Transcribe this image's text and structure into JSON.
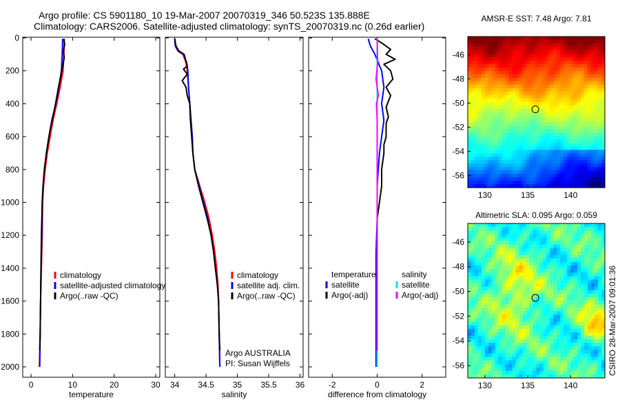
{
  "header": {
    "title_line1": "Argo profile: CS 5901180_10 19-Mar-2007 20070319_346 50.523S 135.888E",
    "title_line2": "Climatology: CARS2006. Satellite-adjusted climatology: synTS_20070319.nc (0.26d earlier)"
  },
  "side_text": "CSIRO 28-Mar-2007 09:01:36",
  "colors": {
    "climatology": "#ff0000",
    "satellite": "#0000ff",
    "argo": "#000000",
    "sat_salinity": "#00e5e5",
    "argo_salinity": "#ff00ff"
  },
  "chart_data": [
    {
      "type": "line",
      "name": "temperature-profile",
      "xlabel": "temperature",
      "xlim": [
        -2,
        31
      ],
      "ylim": [
        0,
        2050
      ],
      "x_ticks": [
        0,
        10,
        20,
        30
      ],
      "y_ticks": [
        0,
        200,
        400,
        600,
        800,
        1000,
        1200,
        1400,
        1600,
        1800,
        2000
      ],
      "legend": [
        "climatology",
        "satellite-adjusted climatology",
        "Argo(..raw -QC)"
      ],
      "series": [
        {
          "name": "climatology",
          "color_key": "climatology",
          "points": [
            [
              8.0,
              5
            ],
            [
              7.9,
              100
            ],
            [
              7.7,
              200
            ],
            [
              7.0,
              300
            ],
            [
              6.2,
              400
            ],
            [
              5.3,
              500
            ],
            [
              4.6,
              600
            ],
            [
              3.9,
              700
            ],
            [
              3.4,
              800
            ],
            [
              3.0,
              900
            ],
            [
              2.8,
              1000
            ],
            [
              2.7,
              1200
            ],
            [
              2.5,
              1400
            ],
            [
              2.3,
              1600
            ],
            [
              2.2,
              1800
            ],
            [
              2.0,
              2000
            ]
          ]
        },
        {
          "name": "satellite",
          "color_key": "satellite",
          "points": [
            [
              7.6,
              5
            ],
            [
              7.5,
              100
            ],
            [
              7.3,
              200
            ],
            [
              6.7,
              300
            ],
            [
              6.0,
              400
            ],
            [
              5.0,
              500
            ],
            [
              4.3,
              600
            ],
            [
              3.7,
              700
            ],
            [
              3.2,
              800
            ],
            [
              2.9,
              900
            ],
            [
              2.7,
              1000
            ],
            [
              2.6,
              1200
            ],
            [
              2.4,
              1400
            ],
            [
              2.3,
              1600
            ],
            [
              2.2,
              1800
            ],
            [
              2.1,
              2000
            ]
          ]
        },
        {
          "name": "Argo",
          "color_key": "argo",
          "points": [
            [
              7.9,
              5
            ],
            [
              8.1,
              40
            ],
            [
              7.8,
              80
            ],
            [
              8.0,
              120
            ],
            [
              7.4,
              200
            ],
            [
              6.6,
              300
            ],
            [
              5.9,
              400
            ],
            [
              5.1,
              500
            ],
            [
              4.3,
              600
            ],
            [
              3.7,
              700
            ],
            [
              3.2,
              800
            ],
            [
              2.9,
              900
            ],
            [
              2.7,
              1000
            ],
            [
              2.5,
              1200
            ],
            [
              2.4,
              1400
            ],
            [
              2.3,
              1600
            ],
            [
              2.2,
              1800
            ],
            [
              2.1,
              1900
            ]
          ]
        }
      ]
    },
    {
      "type": "line",
      "name": "salinity-profile",
      "xlabel": "salinity",
      "xlim": [
        33.85,
        36.05
      ],
      "ylim": [
        0,
        2050
      ],
      "x_ticks": [
        34,
        34.5,
        35,
        35.5,
        36
      ],
      "y_ticks": [
        0,
        200,
        400,
        600,
        800,
        1000,
        1200,
        1400,
        1600,
        1800,
        2000
      ],
      "legend": [
        "climatology",
        "satellite adj. clim.",
        "Argo(..raw -QC)"
      ],
      "annotation": [
        "Argo AUSTRALIA",
        "PI: Susan Wijffels"
      ],
      "series": [
        {
          "name": "climatology",
          "color_key": "climatology",
          "points": [
            [
              34.0,
              5
            ],
            [
              34.01,
              50
            ],
            [
              34.05,
              80
            ],
            [
              34.13,
              100
            ],
            [
              34.18,
              150
            ],
            [
              34.2,
              200
            ],
            [
              34.22,
              300
            ],
            [
              34.24,
              400
            ],
            [
              34.26,
              500
            ],
            [
              34.28,
              600
            ],
            [
              34.29,
              700
            ],
            [
              34.32,
              800
            ],
            [
              34.4,
              900
            ],
            [
              34.48,
              1000
            ],
            [
              34.55,
              1100
            ],
            [
              34.6,
              1200
            ],
            [
              34.64,
              1300
            ],
            [
              34.67,
              1400
            ],
            [
              34.69,
              1500
            ],
            [
              34.7,
              1600
            ],
            [
              34.71,
              1800
            ],
            [
              34.72,
              2000
            ]
          ]
        },
        {
          "name": "satellite",
          "color_key": "satellite",
          "points": [
            [
              34.0,
              5
            ],
            [
              34.01,
              50
            ],
            [
              34.06,
              80
            ],
            [
              34.14,
              100
            ],
            [
              34.19,
              150
            ],
            [
              34.21,
              200
            ],
            [
              34.22,
              300
            ],
            [
              34.24,
              400
            ],
            [
              34.26,
              500
            ],
            [
              34.28,
              600
            ],
            [
              34.29,
              700
            ],
            [
              34.32,
              800
            ],
            [
              34.39,
              900
            ],
            [
              34.46,
              1000
            ],
            [
              34.53,
              1100
            ],
            [
              34.58,
              1200
            ],
            [
              34.62,
              1300
            ],
            [
              34.65,
              1400
            ],
            [
              34.68,
              1500
            ],
            [
              34.7,
              1600
            ],
            [
              34.71,
              1800
            ],
            [
              34.72,
              2000
            ]
          ]
        },
        {
          "name": "Argo",
          "color_key": "argo",
          "points": [
            [
              34.0,
              5
            ],
            [
              34.02,
              50
            ],
            [
              34.07,
              80
            ],
            [
              34.15,
              100
            ],
            [
              34.2,
              170
            ],
            [
              34.14,
              190
            ],
            [
              34.2,
              220
            ],
            [
              34.12,
              260
            ],
            [
              34.18,
              300
            ],
            [
              34.2,
              350
            ],
            [
              34.24,
              400
            ],
            [
              34.25,
              500
            ],
            [
              34.27,
              600
            ],
            [
              34.29,
              700
            ],
            [
              34.32,
              800
            ],
            [
              34.38,
              900
            ],
            [
              34.45,
              1000
            ],
            [
              34.52,
              1100
            ],
            [
              34.58,
              1200
            ],
            [
              34.62,
              1300
            ],
            [
              34.65,
              1400
            ],
            [
              34.68,
              1500
            ],
            [
              34.7,
              1600
            ],
            [
              34.71,
              1800
            ],
            [
              34.72,
              1900
            ]
          ]
        }
      ]
    },
    {
      "type": "line",
      "name": "difference-profile",
      "xlabel": "difference from climatology",
      "xlim": [
        -3.05,
        3.05
      ],
      "ylim": [
        0,
        2050
      ],
      "x_ticks": [
        -2,
        0,
        2
      ],
      "y_ticks": [
        0,
        200,
        400,
        600,
        800,
        1000,
        1200,
        1400,
        1600,
        1800,
        2000
      ],
      "legend_temperature_header": "temperature",
      "legend_salinity_header": "salinity",
      "legend_temperature": [
        "satellite",
        "Argo(-adj)"
      ],
      "legend_salinity": [
        "satellite",
        "Argo(-adj)"
      ],
      "series": [
        {
          "name": "temperature satellite",
          "color_key": "satellite",
          "points": [
            [
              -0.4,
              5
            ],
            [
              -0.3,
              50
            ],
            [
              -0.1,
              100
            ],
            [
              0.2,
              200
            ],
            [
              0.3,
              300
            ],
            [
              0.2,
              400
            ],
            [
              0.3,
              500
            ],
            [
              0.2,
              600
            ],
            [
              0.1,
              700
            ],
            [
              0.0,
              900
            ],
            [
              0.0,
              1100
            ],
            [
              -0.05,
              1300
            ],
            [
              -0.05,
              1600
            ],
            [
              -0.05,
              2000
            ]
          ]
        },
        {
          "name": "temperature Argo",
          "color_key": "argo",
          "points": [
            [
              -0.1,
              5
            ],
            [
              0.2,
              30
            ],
            [
              0.6,
              70
            ],
            [
              0.4,
              100
            ],
            [
              0.8,
              130
            ],
            [
              0.3,
              160
            ],
            [
              0.6,
              200
            ],
            [
              0.7,
              250
            ],
            [
              0.4,
              300
            ],
            [
              0.6,
              350
            ],
            [
              0.4,
              420
            ],
            [
              0.5,
              480
            ],
            [
              0.4,
              520
            ],
            [
              0.4,
              600
            ],
            [
              0.3,
              650
            ],
            [
              0.3,
              700
            ],
            [
              0.2,
              800
            ],
            [
              0.2,
              900
            ],
            [
              0.1,
              1000
            ],
            [
              0.0,
              1100
            ],
            [
              0.0,
              1300
            ],
            [
              0.0,
              1600
            ],
            [
              0.0,
              1900
            ]
          ]
        },
        {
          "name": "salinity satellite",
          "color_key": "sat_salinity",
          "points": [
            [
              0.0,
              5
            ],
            [
              0.0,
              100
            ],
            [
              0.0,
              400
            ],
            [
              0.0,
              800
            ],
            [
              0.0,
              1200
            ],
            [
              0.0,
              1600
            ],
            [
              0.0,
              2000
            ]
          ]
        },
        {
          "name": "salinity Argo",
          "color_key": "argo_salinity",
          "points": [
            [
              0.0,
              5
            ],
            [
              0.02,
              150
            ],
            [
              -0.05,
              250
            ],
            [
              0.0,
              300
            ],
            [
              0.05,
              350
            ],
            [
              -0.03,
              400
            ],
            [
              0.0,
              500
            ],
            [
              0.0,
              700
            ],
            [
              0.0,
              1000
            ],
            [
              0.0,
              1400
            ],
            [
              0.0,
              1900
            ]
          ]
        }
      ]
    },
    {
      "type": "heatmap",
      "name": "amsr-sst-map",
      "title": "AMSR-E SST: 7.48 Argo: 7.81",
      "xlim": [
        128,
        144
      ],
      "ylim": [
        -57,
        -44.5
      ],
      "x_ticks": [
        130,
        135,
        140
      ],
      "y_ticks": [
        -46,
        -48,
        -50,
        -52,
        -54,
        -56
      ],
      "float_lon": 135.888,
      "float_lat": -50.523,
      "value_range": [
        3,
        12
      ],
      "field": "north-to-south gradient: warm ~12 near -45, mid ~7.5 near -51, cool ~3 near -56"
    },
    {
      "type": "heatmap",
      "name": "altimetric-sla-map",
      "title": "Altimetric SLA: 0.095 Argo: 0.059",
      "xlim": [
        128,
        144
      ],
      "ylim": [
        -57,
        -44.5
      ],
      "x_ticks": [
        130,
        135,
        140
      ],
      "y_ticks": [
        -46,
        -48,
        -50,
        -52,
        -54,
        -56
      ],
      "float_lon": 135.888,
      "float_lat": -50.523,
      "value_range": [
        -0.1,
        0.15
      ],
      "field": "mostly green ~0 with yellow/orange bands and patches"
    }
  ]
}
